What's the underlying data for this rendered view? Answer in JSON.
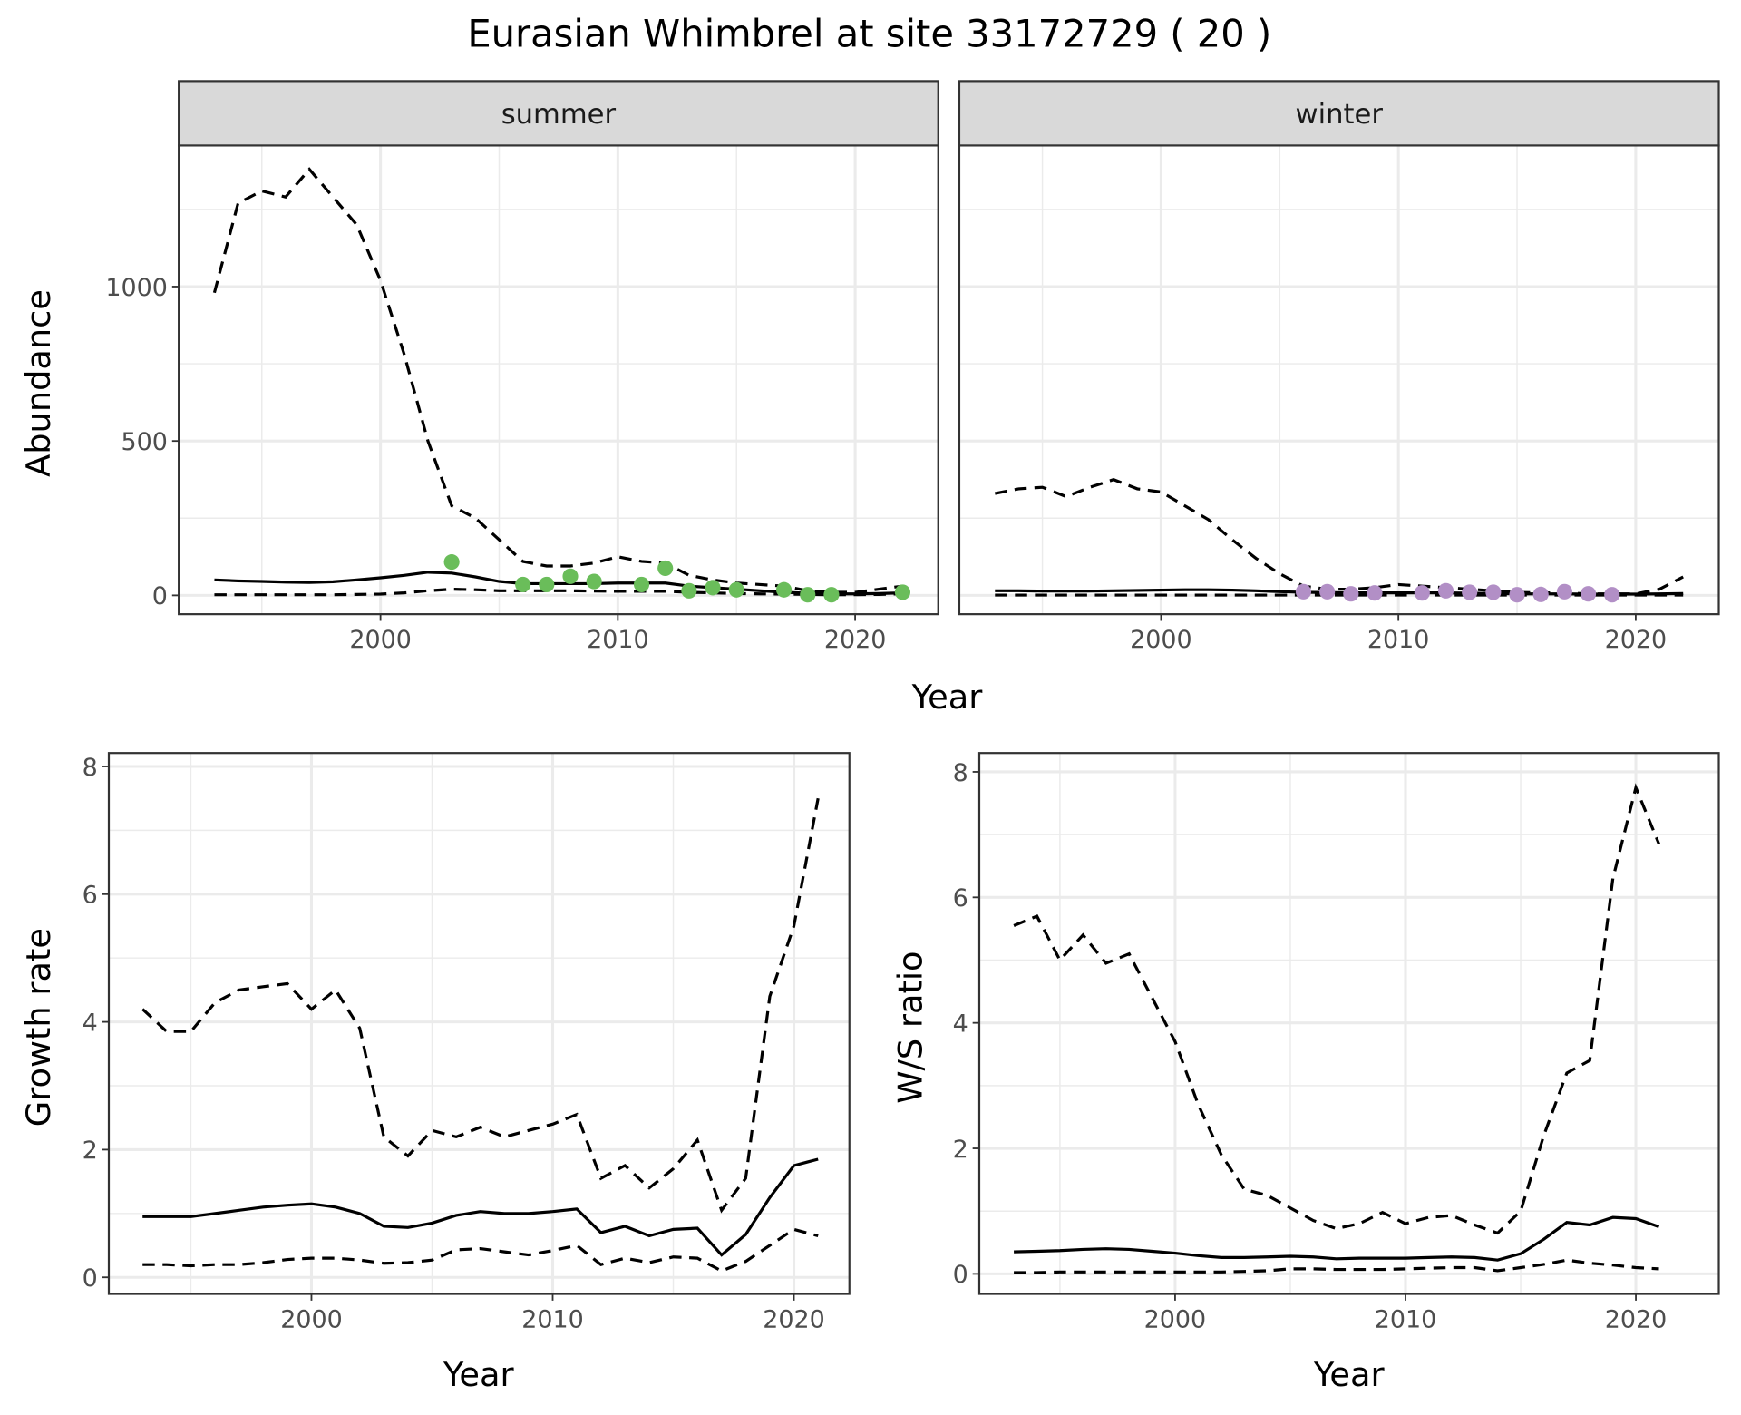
{
  "title": "Eurasian Whimbrel at site 33172729 ( 20 )",
  "colors": {
    "summer_points": "#6abd5a",
    "winter_points": "#b28fc6",
    "strip": "#d9d9d9",
    "grid": "#ebebeb"
  },
  "chart_data": [
    {
      "type": "line",
      "panel": "summer",
      "strip_label": "summer",
      "xlabel": "Year",
      "ylabel": "Abundance",
      "xlim": [
        1991.5,
        2023.5
      ],
      "ylim": [
        -61,
        1457
      ],
      "xticks": [
        2000,
        2010,
        2020
      ],
      "yticks": [
        0,
        500,
        1000
      ],
      "grid": true,
      "x": [
        1993,
        1994,
        1995,
        1996,
        1997,
        1998,
        1999,
        2000,
        2001,
        2002,
        2003,
        2004,
        2005,
        2006,
        2007,
        2008,
        2009,
        2010,
        2011,
        2012,
        2013,
        2014,
        2015,
        2016,
        2017,
        2018,
        2019,
        2020,
        2021,
        2022
      ],
      "series": [
        {
          "name": "upper",
          "style": "dashed",
          "values": [
            980,
            1270,
            1310,
            1290,
            1380,
            1290,
            1200,
            1020,
            780,
            500,
            290,
            250,
            180,
            110,
            95,
            95,
            105,
            125,
            110,
            105,
            65,
            50,
            40,
            35,
            30,
            15,
            10,
            10,
            20,
            30
          ]
        },
        {
          "name": "estimate",
          "style": "solid",
          "values": [
            50,
            47,
            45,
            43,
            42,
            44,
            50,
            57,
            65,
            75,
            72,
            60,
            45,
            38,
            38,
            38,
            38,
            40,
            40,
            40,
            30,
            25,
            20,
            15,
            10,
            7,
            5,
            5,
            6,
            8
          ]
        },
        {
          "name": "lower",
          "style": "dashed",
          "values": [
            2,
            2,
            2,
            2,
            2,
            2,
            3,
            4,
            8,
            15,
            20,
            18,
            15,
            15,
            15,
            15,
            14,
            13,
            13,
            13,
            10,
            8,
            6,
            5,
            4,
            3,
            2,
            2,
            3,
            5
          ]
        }
      ],
      "points": {
        "x": [
          2003,
          2006,
          2007,
          2008,
          2009,
          2011,
          2012,
          2013,
          2014,
          2015,
          2017,
          2018,
          2019,
          2022
        ],
        "y": [
          108,
          35,
          35,
          62,
          45,
          35,
          88,
          15,
          25,
          18,
          18,
          2,
          2,
          10
        ]
      }
    },
    {
      "type": "line",
      "panel": "winter",
      "strip_label": "winter",
      "xlabel": "Year",
      "ylabel": "Abundance",
      "xlim": [
        1991.5,
        2023.5
      ],
      "ylim": [
        -61,
        1457
      ],
      "xticks": [
        2000,
        2010,
        2020
      ],
      "yticks": [
        0,
        500,
        1000
      ],
      "grid": true,
      "x": [
        1993,
        1994,
        1995,
        1996,
        1997,
        1998,
        1999,
        2000,
        2001,
        2002,
        2003,
        2004,
        2005,
        2006,
        2007,
        2008,
        2009,
        2010,
        2011,
        2012,
        2013,
        2014,
        2015,
        2016,
        2017,
        2018,
        2019,
        2020,
        2021,
        2022
      ],
      "series": [
        {
          "name": "upper",
          "style": "dashed",
          "values": [
            330,
            345,
            350,
            320,
            350,
            375,
            345,
            335,
            290,
            245,
            180,
            120,
            70,
            30,
            20,
            20,
            25,
            35,
            30,
            25,
            20,
            15,
            10,
            8,
            8,
            5,
            5,
            5,
            20,
            60
          ]
        },
        {
          "name": "estimate",
          "style": "solid",
          "values": [
            15,
            15,
            14,
            14,
            14,
            15,
            16,
            17,
            18,
            18,
            17,
            15,
            12,
            10,
            9,
            8,
            8,
            8,
            8,
            8,
            7,
            6,
            5,
            5,
            5,
            4,
            4,
            4,
            5,
            6
          ]
        },
        {
          "name": "lower",
          "style": "dashed",
          "values": [
            1,
            1,
            1,
            1,
            1,
            1,
            1,
            1,
            1,
            1,
            1,
            1,
            1,
            1,
            1,
            1,
            1,
            1,
            1,
            1,
            1,
            1,
            1,
            1,
            1,
            1,
            1,
            1,
            1,
            1
          ]
        }
      ],
      "points": {
        "x": [
          2006,
          2007,
          2008,
          2009,
          2011,
          2012,
          2013,
          2014,
          2015,
          2016,
          2017,
          2018,
          2019
        ],
        "y": [
          12,
          12,
          5,
          8,
          8,
          15,
          10,
          10,
          2,
          3,
          12,
          5,
          2
        ]
      }
    },
    {
      "type": "line",
      "panel": "growth",
      "xlabel": "Year",
      "ylabel": "Growth rate",
      "xlim": [
        1991.6,
        2022.3
      ],
      "ylim": [
        -0.26,
        8.21
      ],
      "xticks": [
        2000,
        2010,
        2020
      ],
      "yticks": [
        0,
        2,
        4,
        6,
        8
      ],
      "grid": true,
      "x": [
        1993,
        1994,
        1995,
        1996,
        1997,
        1998,
        1999,
        2000,
        2001,
        2002,
        2003,
        2004,
        2005,
        2006,
        2007,
        2008,
        2009,
        2010,
        2011,
        2012,
        2013,
        2014,
        2015,
        2016,
        2017,
        2018,
        2019,
        2020,
        2021
      ],
      "series": [
        {
          "name": "upper",
          "style": "dashed",
          "values": [
            4.2,
            3.85,
            3.85,
            4.3,
            4.5,
            4.55,
            4.6,
            4.2,
            4.5,
            3.9,
            2.2,
            1.9,
            2.3,
            2.2,
            2.35,
            2.2,
            2.3,
            2.4,
            2.55,
            1.55,
            1.75,
            1.4,
            1.7,
            2.15,
            1.05,
            1.55,
            4.4,
            5.5,
            7.5
          ]
        },
        {
          "name": "estimate",
          "style": "solid",
          "values": [
            0.95,
            0.95,
            0.95,
            1.0,
            1.05,
            1.1,
            1.13,
            1.15,
            1.1,
            1.0,
            0.8,
            0.78,
            0.85,
            0.97,
            1.03,
            1.0,
            1.0,
            1.03,
            1.07,
            0.7,
            0.8,
            0.65,
            0.75,
            0.77,
            0.35,
            0.67,
            1.25,
            1.75,
            1.85
          ]
        },
        {
          "name": "lower",
          "style": "dashed",
          "values": [
            0.2,
            0.2,
            0.18,
            0.2,
            0.2,
            0.23,
            0.28,
            0.3,
            0.3,
            0.27,
            0.22,
            0.23,
            0.27,
            0.43,
            0.45,
            0.4,
            0.35,
            0.42,
            0.5,
            0.2,
            0.3,
            0.23,
            0.32,
            0.3,
            0.1,
            0.25,
            0.5,
            0.75,
            0.65
          ]
        }
      ]
    },
    {
      "type": "line",
      "panel": "ratio",
      "xlabel": "Year",
      "ylabel": "W/S ratio",
      "xlim": [
        1991.5,
        2023.6
      ],
      "ylim": [
        -0.32,
        8.3
      ],
      "xticks": [
        2000,
        2010,
        2020
      ],
      "yticks": [
        0,
        2,
        4,
        6,
        8
      ],
      "grid": true,
      "x": [
        1993,
        1994,
        1995,
        1996,
        1997,
        1998,
        1999,
        2000,
        2001,
        2002,
        2003,
        2004,
        2005,
        2006,
        2007,
        2008,
        2009,
        2010,
        2011,
        2012,
        2013,
        2014,
        2015,
        2016,
        2017,
        2018,
        2019,
        2020,
        2021
      ],
      "series": [
        {
          "name": "upper",
          "style": "dashed",
          "values": [
            5.55,
            5.7,
            5.0,
            5.4,
            4.95,
            5.1,
            4.4,
            3.7,
            2.7,
            1.9,
            1.35,
            1.25,
            1.05,
            0.85,
            0.72,
            0.8,
            0.98,
            0.8,
            0.9,
            0.93,
            0.78,
            0.65,
            1.0,
            2.2,
            3.2,
            3.4,
            6.3,
            7.75,
            6.85
          ]
        },
        {
          "name": "estimate",
          "style": "solid",
          "values": [
            0.35,
            0.36,
            0.37,
            0.39,
            0.4,
            0.39,
            0.36,
            0.33,
            0.29,
            0.26,
            0.26,
            0.27,
            0.28,
            0.27,
            0.24,
            0.25,
            0.25,
            0.25,
            0.26,
            0.27,
            0.26,
            0.22,
            0.32,
            0.55,
            0.82,
            0.78,
            0.9,
            0.88,
            0.75
          ]
        },
        {
          "name": "lower",
          "style": "dashed",
          "values": [
            0.02,
            0.02,
            0.03,
            0.03,
            0.03,
            0.03,
            0.03,
            0.03,
            0.03,
            0.03,
            0.04,
            0.05,
            0.08,
            0.08,
            0.07,
            0.07,
            0.07,
            0.08,
            0.09,
            0.1,
            0.1,
            0.05,
            0.1,
            0.15,
            0.22,
            0.17,
            0.14,
            0.1,
            0.08
          ]
        }
      ]
    }
  ]
}
